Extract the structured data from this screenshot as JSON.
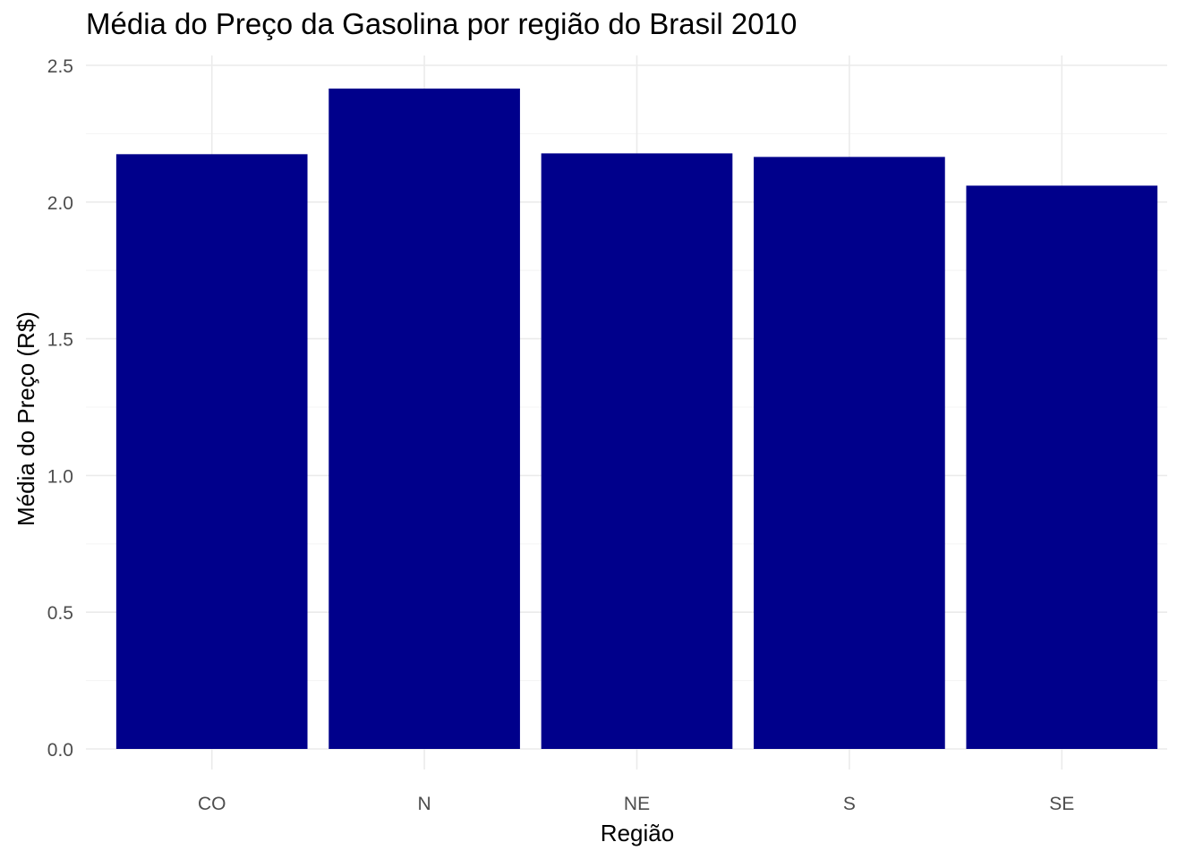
{
  "chart_data": {
    "type": "bar",
    "title": "Média do Preço da Gasolina por região do Brasil 2010",
    "xlabel": "Região",
    "ylabel": "Média do Preço (R$)",
    "categories": [
      "CO",
      "N",
      "NE",
      "S",
      "SE"
    ],
    "values": [
      2.175,
      2.415,
      2.178,
      2.165,
      2.06
    ],
    "ylim": [
      0,
      2.5
    ],
    "yticks": [
      "0.0",
      "0.5",
      "1.0",
      "1.5",
      "2.0",
      "2.5"
    ],
    "ytick_values": [
      0,
      0.5,
      1.0,
      1.5,
      2.0,
      2.5
    ],
    "grid": true,
    "legend": "none",
    "colors": {
      "bar": "#00008B",
      "grid_major": "#EBEBEB",
      "grid_minor": "#F5F5F5",
      "tick_text": "#4D4D4D"
    }
  }
}
